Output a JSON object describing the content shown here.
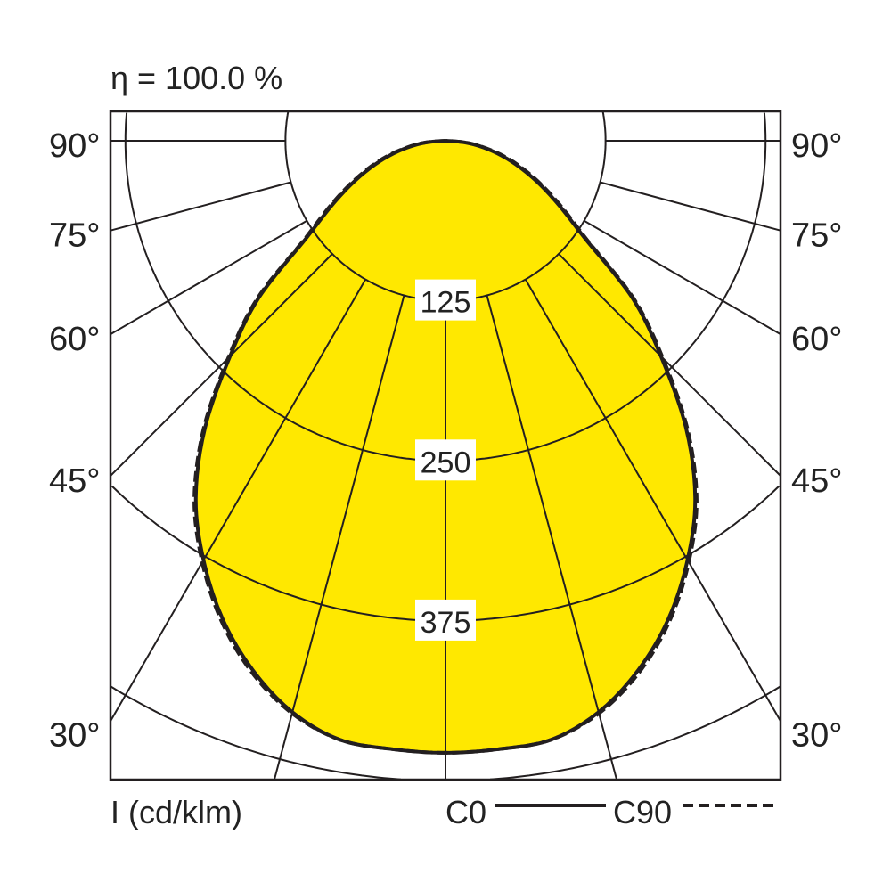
{
  "chart_data": {
    "type": "polar",
    "title": "η = 100.0 %",
    "unit_label": "I (cd/klm)",
    "radial_ticks": [
      125,
      250,
      375,
      500
    ],
    "radial_tick_labels": [
      "125",
      "250",
      "375"
    ],
    "angle_ticks": [
      0,
      15,
      30,
      45,
      60,
      75,
      90
    ],
    "angle_tick_labels": [
      "30°",
      "45°",
      "60°",
      "75°",
      "90°"
    ],
    "angles": [
      0,
      5,
      10,
      15,
      20,
      25,
      30,
      35,
      40,
      45,
      50,
      55,
      60,
      65,
      70,
      75,
      80,
      85,
      90
    ],
    "series": [
      {
        "name": "C0",
        "style": "solid",
        "values": [
          478,
          477,
          475,
          462,
          440,
          412,
          378,
          340,
          292,
          238,
          190,
          133,
          104,
          82,
          63,
          46,
          30,
          15,
          0
        ]
      },
      {
        "name": "C90",
        "style": "dashed",
        "values": [
          478,
          477,
          475,
          463,
          442,
          414,
          380,
          342,
          294,
          240,
          192,
          135,
          106,
          84,
          65,
          48,
          31,
          16,
          0
        ]
      }
    ],
    "fill_color": "#ffe800",
    "line_color": "#231f20"
  }
}
